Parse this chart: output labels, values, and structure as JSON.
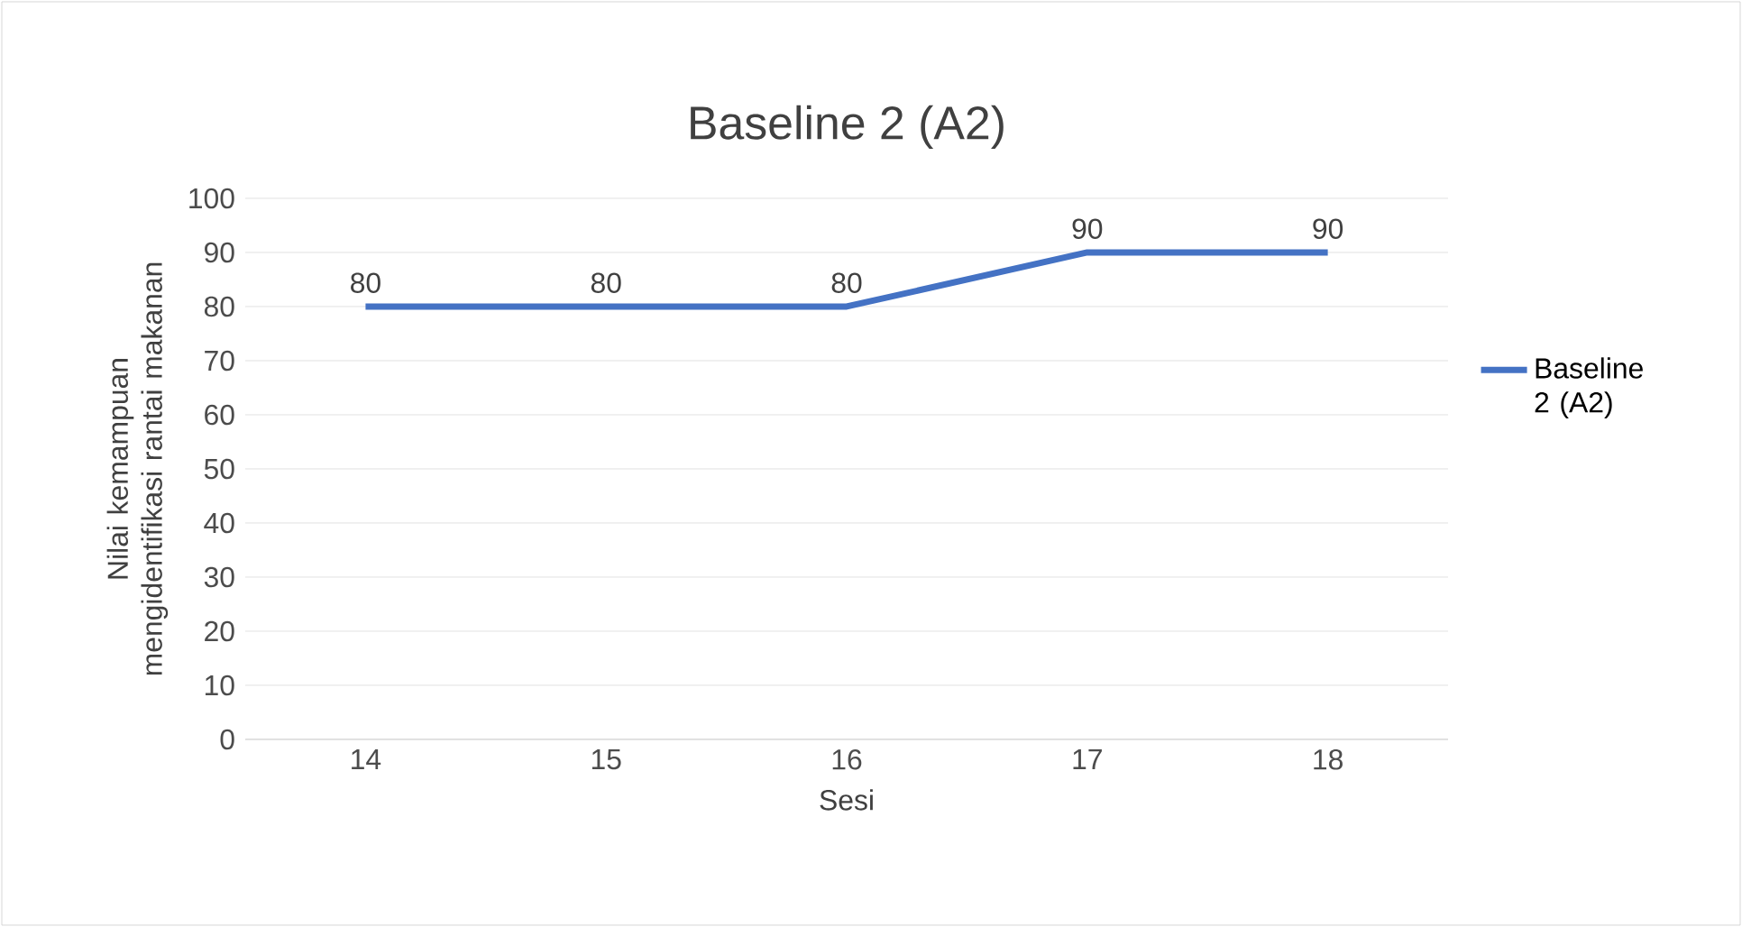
{
  "chart_data": {
    "type": "line",
    "title": "Baseline 2 (A2)",
    "xlabel": "Sesi",
    "ylabel": "Nilai kemampuan mengidentifikasi rantai makanan",
    "categories": [
      "14",
      "15",
      "16",
      "17",
      "18"
    ],
    "series": [
      {
        "name": "Baseline 2 (A2)",
        "color": "#4472c4",
        "values": [
          80,
          80,
          80,
          90,
          90
        ]
      }
    ],
    "ylim": [
      0,
      100
    ],
    "yticks": [
      0,
      10,
      20,
      30,
      40,
      50,
      60,
      70,
      80,
      90,
      100
    ],
    "grid": "y",
    "legend": "right",
    "data_labels": true,
    "marker": "none",
    "line_style": "solid"
  }
}
